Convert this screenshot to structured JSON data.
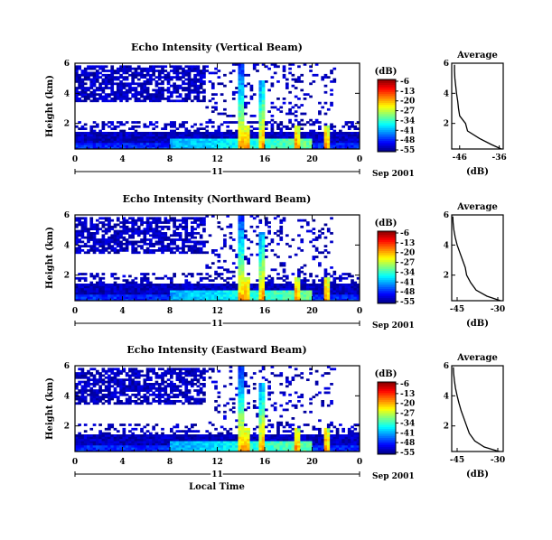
{
  "chart_data": [
    {
      "type": "heatmap",
      "title": "Echo Intensity (Vertical Beam)",
      "xlabel": "",
      "ylabel": "Height (km)",
      "x_ticks": [
        "0",
        "4",
        "8",
        "12",
        "16",
        "20",
        "0"
      ],
      "y_ticks": [
        "6",
        "4",
        "2"
      ],
      "xlim": [
        0,
        24
      ],
      "ylim": [
        0.3,
        6
      ],
      "date_bar": {
        "day": "11",
        "month_year": "Sep 2001"
      },
      "colorbar": {
        "unit": "(dB)",
        "ticks": [
          "-6",
          "-13",
          "-20",
          "-27",
          "-34",
          "-41",
          "-48",
          "-55"
        ],
        "range": [
          -55,
          -6
        ]
      },
      "average": {
        "title": "Average",
        "xlabel": "(dB)",
        "x_ticks": [
          "-46",
          "-36"
        ],
        "y_ticks": [
          "6",
          "4",
          "2"
        ],
        "xlim": [
          -48,
          -35
        ],
        "profile_height": [
          0.3,
          0.6,
          1.0,
          1.5,
          2.0,
          2.5,
          3.0,
          3.5,
          4.0,
          4.5,
          5.0,
          5.5,
          5.9
        ],
        "profile_db": [
          -35.5,
          -38,
          -41,
          -44,
          -44.5,
          -46,
          -46.3,
          -46.5,
          -46.8,
          -47,
          -47.2,
          -47.3,
          -47.3
        ]
      }
    },
    {
      "type": "heatmap",
      "title": "Echo Intensity (Northward Beam)",
      "xlabel": "",
      "ylabel": "Height (km)",
      "x_ticks": [
        "0",
        "4",
        "8",
        "12",
        "16",
        "20",
        "0"
      ],
      "y_ticks": [
        "6",
        "4",
        "2"
      ],
      "xlim": [
        0,
        24
      ],
      "ylim": [
        0.3,
        6
      ],
      "date_bar": {
        "day": "11",
        "month_year": "Sep 2001"
      },
      "colorbar": {
        "unit": "(dB)",
        "ticks": [
          "-6",
          "-13",
          "-20",
          "-27",
          "-34",
          "-41",
          "-48",
          "-55"
        ],
        "range": [
          -55,
          -6
        ]
      },
      "average": {
        "title": "Average",
        "xlabel": "(dB)",
        "x_ticks": [
          "-45",
          "-30"
        ],
        "y_ticks": [
          "6",
          "4",
          "2"
        ],
        "xlim": [
          -47,
          -28
        ],
        "profile_height": [
          0.3,
          0.6,
          1.0,
          1.5,
          2.0,
          2.5,
          3.0,
          3.5,
          4.0,
          4.5,
          5.0,
          5.5,
          5.9
        ],
        "profile_db": [
          -29,
          -34,
          -38,
          -40,
          -41.5,
          -42,
          -43,
          -44,
          -45,
          -45.7,
          -46.2,
          -46.5,
          -46.6
        ]
      }
    },
    {
      "type": "heatmap",
      "title": "Echo Intensity (Eastward Beam)",
      "xlabel": "Local Time",
      "ylabel": "Height (km)",
      "x_ticks": [
        "0",
        "4",
        "8",
        "12",
        "16",
        "20",
        "0"
      ],
      "y_ticks": [
        "6",
        "4",
        "2"
      ],
      "xlim": [
        0,
        24
      ],
      "ylim": [
        0.3,
        6
      ],
      "date_bar": {
        "day": "11",
        "month_year": "Sep 2001"
      },
      "colorbar": {
        "unit": "(dB)",
        "ticks": [
          "-6",
          "-13",
          "-20",
          "-27",
          "-34",
          "-41",
          "-48",
          "-55"
        ],
        "range": [
          -55,
          -6
        ]
      },
      "average": {
        "title": "Average",
        "xlabel": "(dB)",
        "x_ticks": [
          "-45",
          "-30"
        ],
        "y_ticks": [
          "6",
          "4",
          "2"
        ],
        "xlim": [
          -47,
          -28
        ],
        "profile_height": [
          0.3,
          0.6,
          1.0,
          1.5,
          2.0,
          2.5,
          3.0,
          3.5,
          4.0,
          4.5,
          5.0,
          5.5,
          5.9
        ],
        "profile_db": [
          -29.5,
          -35,
          -38.5,
          -40.5,
          -41.5,
          -42.5,
          -43.5,
          -44.3,
          -45,
          -45.6,
          -46,
          -46.3,
          -46.4
        ]
      }
    }
  ]
}
